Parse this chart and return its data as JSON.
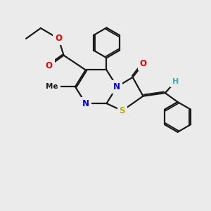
{
  "bg_color": "#ebebeb",
  "bond_color": "#1a1a1a",
  "bond_width": 1.6,
  "dbo": 0.06,
  "atom_colors": {
    "N": "#0000ee",
    "O": "#ee0000",
    "S": "#bbaa00",
    "H": "#44aaaa",
    "C": "#1a1a1a"
  },
  "figsize": [
    3.0,
    3.0
  ],
  "dpi": 100
}
